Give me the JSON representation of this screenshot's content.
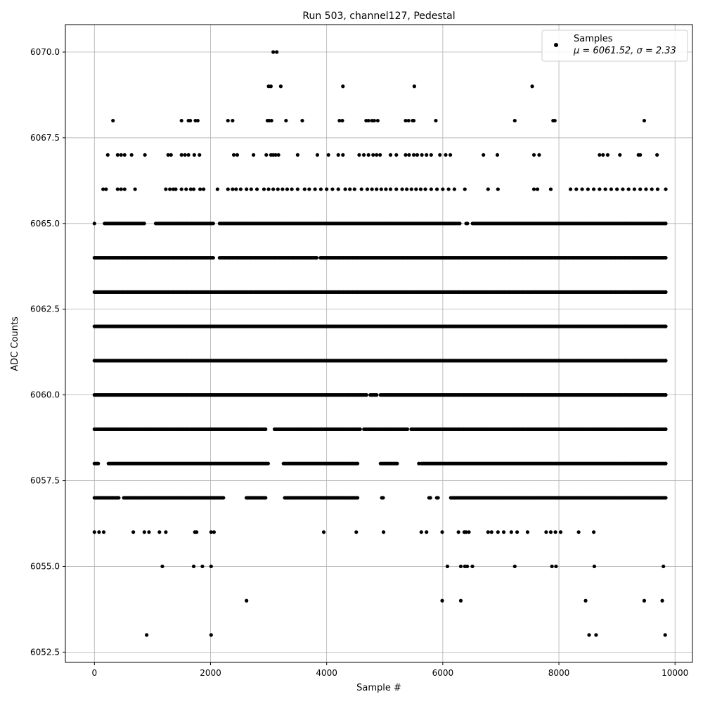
{
  "chart_data": {
    "type": "scatter",
    "title": "Run 503, channel127, Pedestal",
    "xlabel": "Sample #",
    "ylabel": "ADC Counts",
    "xlim": [
      -500,
      10300
    ],
    "ylim": [
      6052.2,
      6070.8
    ],
    "x_ticks": [
      0,
      2000,
      4000,
      6000,
      8000,
      10000
    ],
    "x_tick_labels": [
      "0",
      "2000",
      "4000",
      "6000",
      "8000",
      "10000"
    ],
    "y_ticks": [
      6052.5,
      6055.0,
      6057.5,
      6060.0,
      6062.5,
      6065.0,
      6067.5,
      6070.0
    ],
    "y_tick_labels": [
      "6052.5",
      "6055.0",
      "6057.5",
      "6060.0",
      "6062.5",
      "6065.0",
      "6067.5",
      "6070.0"
    ],
    "grid": true,
    "legend": {
      "placement": "top-right",
      "entries": [
        {
          "label": "Samples",
          "stat_line": "μ = 6061.52, σ = 2.33"
        }
      ]
    },
    "marker_color": "#000000",
    "series": [
      {
        "name": "Samples",
        "rows": [
          {
            "y": 6070,
            "x": [
              3080,
              3140
            ]
          },
          {
            "y": 6069,
            "x": [
              3000,
              3040,
              3210,
              4280,
              5510,
              7540
            ]
          },
          {
            "y": 6068,
            "x": [
              320,
              1500,
              1620,
              1650,
              1740,
              1780,
              2300,
              2380,
              2980,
              3010,
              3050,
              3300,
              3580,
              4220,
              4270,
              4680,
              4720,
              4780,
              4820,
              4880,
              5360,
              5410,
              5480,
              5500,
              5880,
              7240,
              7900,
              7930,
              9470
            ]
          },
          {
            "y": 6067,
            "x": [
              230,
              400,
              460,
              520,
              640,
              870,
              1270,
              1320,
              1500,
              1560,
              1620,
              1720,
              1810,
              2400,
              2460,
              2740,
              2960,
              3040,
              3080,
              3120,
              3170,
              3500,
              3840,
              4030,
              4200,
              4280,
              4560,
              4640,
              4720,
              4800,
              4860,
              4920,
              5100,
              5200,
              5360,
              5420,
              5500,
              5560,
              5640,
              5720,
              5800,
              5950,
              6050,
              6130,
              6700,
              6940,
              7570,
              7660,
              8700,
              8760,
              8840,
              9050,
              9370,
              9400,
              9690
            ]
          },
          {
            "y": 6066,
            "x": [
              150,
              200,
              400,
              460,
              520,
              700,
              1230,
              1300,
              1360,
              1400,
              1500,
              1580,
              1660,
              1710,
              1820,
              1880,
              2120,
              2300,
              2380,
              2440,
              2520,
              2620,
              2700,
              2800,
              2920,
              3000,
              3080,
              3160,
              3240,
              3320,
              3400,
              3500,
              3620,
              3700,
              3800,
              3900,
              4000,
              4100,
              4200,
              4320,
              4400,
              4480,
              4600,
              4700,
              4780,
              4860,
              4940,
              5020,
              5100,
              5200,
              5300,
              5380,
              5460,
              5540,
              5620,
              5700,
              5800,
              5900,
              6000,
              6100,
              6200,
              6380,
              6780,
              6950,
              7570,
              7630,
              7860,
              8200,
              8300,
              8400,
              8500,
              8600,
              8700,
              8800,
              8900,
              9000,
              9100,
              9200,
              9300,
              9400,
              9500,
              9600,
              9700,
              9840
            ]
          },
          {
            "y": 6053,
            "x": [
              900,
              2010,
              8520,
              8640,
              9830
            ]
          }
        ],
        "sparse_rows": [
          {
            "y": 6056,
            "x": [
              0,
              80,
              160,
              670,
              860,
              940,
              1120,
              1230,
              1730,
              1760,
              2010,
              2060,
              3950,
              4510,
              4980,
              5630,
              5720,
              5990,
              6270,
              6370,
              6400,
              6450,
              6780,
              6840,
              6950,
              7050,
              7180,
              7280,
              7460,
              7780,
              7860,
              7940,
              8030,
              8340,
              8600
            ]
          },
          {
            "y": 6055,
            "x": [
              1170,
              1710,
              1860,
              2010,
              6080,
              6310,
              6380,
              6420,
              6510,
              7240,
              7880,
              7950,
              8610,
              9800
            ]
          },
          {
            "y": 6054,
            "x": [
              2620,
              5990,
              6310,
              8460,
              9470,
              9780
            ]
          }
        ],
        "dense_rows": [
          {
            "y": 6057,
            "x_range": [
              0,
              9840
            ],
            "gaps": [
              [
                420,
                500
              ],
              [
                2230,
                2600
              ],
              [
                2960,
                3270
              ],
              [
                4540,
                4940
              ],
              [
                4980,
                5760
              ],
              [
                5800,
                5880
              ],
              [
                5940,
                6120
              ]
            ]
          },
          {
            "y": 6058,
            "x_range": [
              0,
              9840
            ],
            "gaps": [
              [
                80,
                220
              ],
              [
                3000,
                3240
              ],
              [
                4540,
                4920
              ],
              [
                5220,
                5570
              ],
              [
                5600,
                5620
              ]
            ]
          },
          {
            "y": 6059,
            "x_range": [
              0,
              9840
            ],
            "gaps": [
              [
                2960,
                3100
              ],
              [
                4580,
                4620
              ],
              [
                5400,
                5440
              ]
            ]
          },
          {
            "y": 6060,
            "x_range": [
              0,
              9840
            ],
            "gaps": [
              [
                4700,
                4740
              ],
              [
                4880,
                4920
              ]
            ]
          },
          {
            "y": 6061,
            "x_range": [
              0,
              9840
            ],
            "gaps": []
          },
          {
            "y": 6062,
            "x_range": [
              0,
              9840
            ],
            "gaps": []
          },
          {
            "y": 6063,
            "x_range": [
              0,
              9840
            ],
            "gaps": []
          },
          {
            "y": 6064,
            "x_range": [
              0,
              9840
            ],
            "gaps": [
              [
                2060,
                2140
              ],
              [
                3840,
                3880
              ]
            ]
          },
          {
            "y": 6065,
            "x_range": [
              0,
              9840
            ],
            "gaps": [
              [
                20,
                160
              ],
              [
                880,
                1040
              ],
              [
                2060,
                2140
              ],
              [
                6300,
                6380
              ],
              [
                6440,
                6500
              ]
            ]
          }
        ]
      }
    ]
  }
}
